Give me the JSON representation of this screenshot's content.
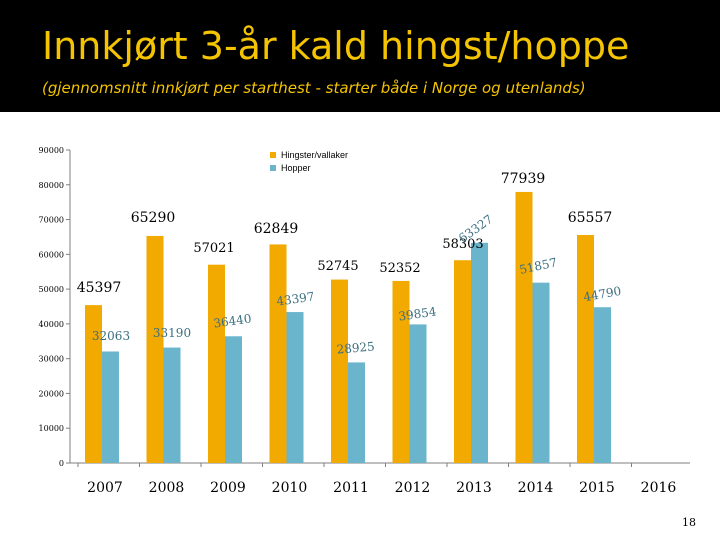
{
  "slide": {
    "title": "Innkjørt 3-år kald hingst/hoppe",
    "subtitle": "(gjennomsnitt innkjørt per starthest - starter både i Norge og utenlands)",
    "page_number": "18"
  },
  "colors": {
    "header_bg": "#000000",
    "title": "#f4c400",
    "hingster": "#f2a900",
    "hopper": "#6ab4cc"
  },
  "chart_data": {
    "type": "bar",
    "title": "",
    "xlabel": "",
    "ylabel": "",
    "ylim": [
      0,
      90000
    ],
    "yticks": [
      "0",
      "10000",
      "20000",
      "30000",
      "40000",
      "50000",
      "60000",
      "70000",
      "80000",
      "90000"
    ],
    "categories": [
      "2007",
      "2008",
      "2009",
      "2010",
      "2011",
      "2012",
      "2013",
      "2014",
      "2015",
      "2016"
    ],
    "series": [
      {
        "name": "Hingster/vallaker",
        "color": "#f2a900",
        "values": [
          45397,
          65290,
          57021,
          62849,
          52745,
          52352,
          58303,
          77939,
          65557,
          null
        ],
        "labels": [
          "45397",
          "65290",
          "57021",
          "62849",
          "52745",
          "52352",
          "58303",
          "77939",
          "65557",
          ""
        ]
      },
      {
        "name": "Hopper",
        "color": "#6ab4cc",
        "values": [
          32063,
          33190,
          36440,
          43397,
          28925,
          39854,
          63327,
          51857,
          44790,
          null
        ],
        "labels": [
          "32063",
          "33190",
          "36440",
          "43397",
          "28925",
          "39854",
          "63327",
          "51857",
          "44790",
          ""
        ]
      }
    ],
    "legend_position": "top-center",
    "grid": false
  }
}
